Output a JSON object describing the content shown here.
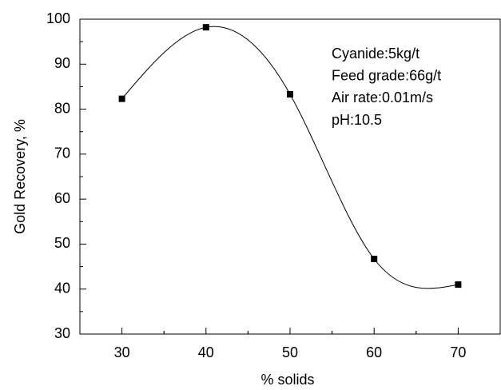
{
  "chart_data": {
    "type": "scatter",
    "x_label": "% solids",
    "y_label": "Gold Recovery, %",
    "annotations": [
      "Cyanide:5kg/t",
      "Feed grade:66g/t",
      "Air rate:0.01m/s",
      "pH:10.5"
    ],
    "series": [
      {
        "x": [
          30,
          40,
          50,
          60,
          70
        ],
        "values": [
          82.3,
          98.2,
          83.3,
          46.7,
          41
        ],
        "color": "#000000"
      }
    ],
    "xlim": [
      25,
      75
    ],
    "xticks": [
      30,
      40,
      50,
      60,
      70
    ],
    "ylim": [
      30,
      100
    ],
    "yticks": [
      30,
      40,
      50,
      60,
      70,
      80,
      90,
      100
    ],
    "smooth_curve": true
  }
}
